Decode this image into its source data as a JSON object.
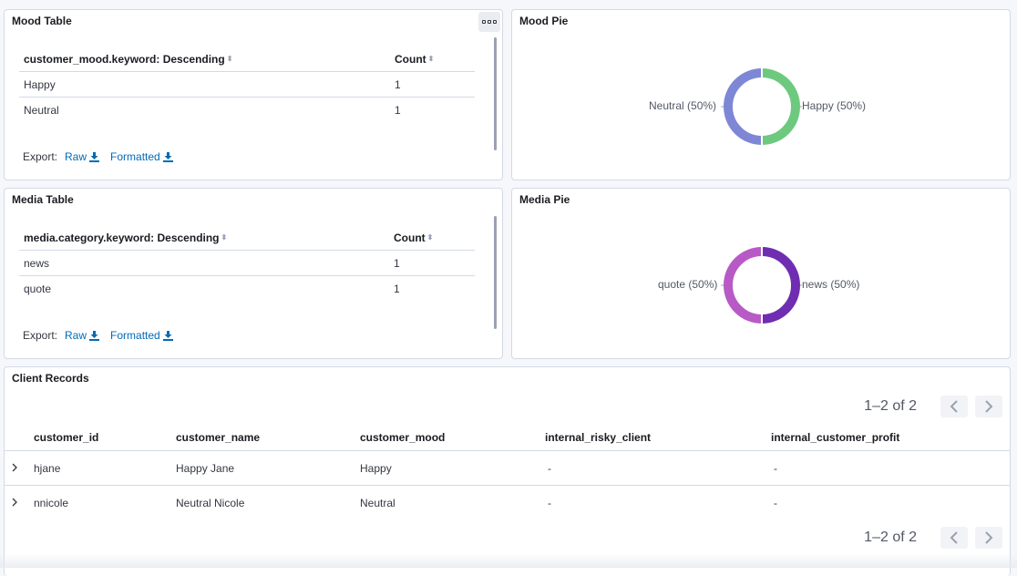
{
  "mood_table": {
    "title": "Mood Table",
    "columns": [
      "customer_mood.keyword: Descending",
      "Count"
    ],
    "rows": [
      {
        "key": "Happy",
        "count": "1"
      },
      {
        "key": "Neutral",
        "count": "1"
      }
    ],
    "export_label": "Export:",
    "raw_label": "Raw",
    "formatted_label": "Formatted"
  },
  "mood_pie": {
    "title": "Mood Pie",
    "left_label": "Neutral (50%)",
    "right_label": "Happy (50%)",
    "colors": {
      "left": "#7e86d6",
      "right": "#6dc97e"
    }
  },
  "media_table": {
    "title": "Media Table",
    "columns": [
      "media.category.keyword: Descending",
      "Count"
    ],
    "rows": [
      {
        "key": "news",
        "count": "1"
      },
      {
        "key": "quote",
        "count": "1"
      }
    ],
    "export_label": "Export:",
    "raw_label": "Raw",
    "formatted_label": "Formatted"
  },
  "media_pie": {
    "title": "Media Pie",
    "left_label": "quote (50%)",
    "right_label": "news (50%)",
    "colors": {
      "left": "#b75ac6",
      "right": "#6f2db2"
    }
  },
  "client_records": {
    "title": "Client Records",
    "pagination": "1–2 of 2",
    "columns": [
      "customer_id",
      "customer_name",
      "customer_mood",
      "internal_risky_client",
      "internal_customer_profit"
    ],
    "rows": [
      {
        "customer_id": "hjane",
        "customer_name": "Happy Jane",
        "customer_mood": "Happy",
        "internal_risky_client": "-",
        "internal_customer_profit": "-"
      },
      {
        "customer_id": "nnicole",
        "customer_name": "Neutral Nicole",
        "customer_mood": "Neutral",
        "internal_risky_client": "-",
        "internal_customer_profit": "-"
      }
    ]
  },
  "colors": {
    "link": "#006bb4",
    "border": "#d3dae6",
    "background": "#f5f7fa"
  },
  "icons": [
    "panel-options-icon",
    "sort-icon",
    "download-icon",
    "chevron-left-icon",
    "chevron-right-icon",
    "expand-row-icon"
  ]
}
